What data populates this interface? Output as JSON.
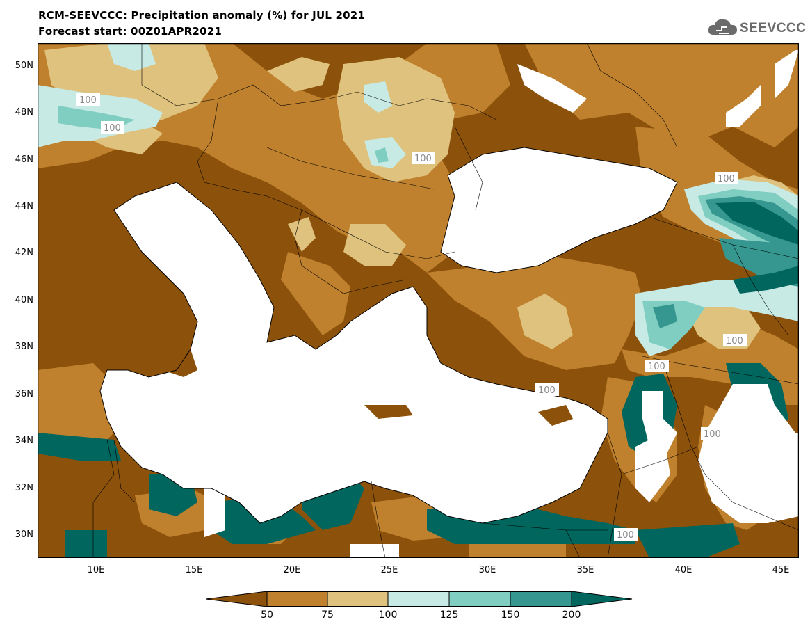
{
  "title": {
    "line1": "RCM-SEEVCCC: Precipitation anomaly (%) for JUL 2021",
    "line2": "Forecast start: 00Z01APR2021"
  },
  "logo": {
    "text": "SEEVCCC",
    "icon": "cloud-icon"
  },
  "axes": {
    "lat_labels": [
      "50N",
      "48N",
      "46N",
      "44N",
      "42N",
      "40N",
      "38N",
      "36N",
      "34N",
      "32N",
      "30N"
    ],
    "lon_labels": [
      "10E",
      "15E",
      "20E",
      "25E",
      "30E",
      "35E",
      "40E",
      "45E"
    ]
  },
  "contour_labels": [
    "100",
    "100",
    "100",
    "100",
    "100",
    "100",
    "100",
    "100",
    "100"
  ],
  "colorbar": {
    "labels": [
      "50",
      "75",
      "100",
      "125",
      "150",
      "200"
    ],
    "colors": [
      "#8c510a",
      "#bf812d",
      "#dfc27d",
      "#c7eae5",
      "#80cdc1",
      "#35978f",
      "#01665e"
    ]
  }
}
